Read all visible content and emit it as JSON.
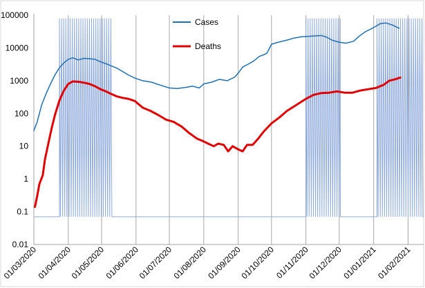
{
  "chart_data": {
    "type": "line",
    "y_scale": "log",
    "ylim": [
      0.01,
      100000
    ],
    "y_ticks": [
      "0.01",
      "0.1",
      "1",
      "10",
      "100",
      "1000",
      "10000",
      "100000"
    ],
    "y_tick_values": [
      0.01,
      0.1,
      1,
      10,
      100,
      1000,
      10000,
      100000
    ],
    "x_ticks": [
      "01/03/2020",
      "01/04/2020",
      "01/05/2020",
      "01/06/2020",
      "01/07/2020",
      "01/08/2020",
      "01/09/2020",
      "01/10/2020",
      "01/11/2020",
      "01/12/2020",
      "01/01/2021",
      "01/02/2021"
    ],
    "x_range": [
      "01/03/2020",
      "15/02/2021"
    ],
    "grid": "vertical",
    "legend_position": "top-center",
    "series": [
      {
        "name": "Cases",
        "color": "#1f6fb4",
        "points": [
          [
            "01/03/2020",
            30
          ],
          [
            "04/03/2020",
            55
          ],
          [
            "08/03/2020",
            180
          ],
          [
            "12/03/2020",
            400
          ],
          [
            "16/03/2020",
            800
          ],
          [
            "20/03/2020",
            1500
          ],
          [
            "24/03/2020",
            2500
          ],
          [
            "28/03/2020",
            3500
          ],
          [
            "01/04/2020",
            4500
          ],
          [
            "05/04/2020",
            5000
          ],
          [
            "10/04/2020",
            4300
          ],
          [
            "15/04/2020",
            4800
          ],
          [
            "20/04/2020",
            4700
          ],
          [
            "25/04/2020",
            4500
          ],
          [
            "30/04/2020",
            3800
          ],
          [
            "05/05/2020",
            3300
          ],
          [
            "10/05/2020",
            2800
          ],
          [
            "15/05/2020",
            2400
          ],
          [
            "20/05/2020",
            1900
          ],
          [
            "25/05/2020",
            1500
          ],
          [
            "31/05/2020",
            1200
          ],
          [
            "07/06/2020",
            1000
          ],
          [
            "15/06/2020",
            900
          ],
          [
            "22/06/2020",
            750
          ],
          [
            "01/07/2020",
            600
          ],
          [
            "08/07/2020",
            580
          ],
          [
            "15/07/2020",
            620
          ],
          [
            "22/07/2020",
            680
          ],
          [
            "28/07/2020",
            600
          ],
          [
            "01/08/2020",
            800
          ],
          [
            "08/08/2020",
            900
          ],
          [
            "15/08/2020",
            1100
          ],
          [
            "22/08/2020",
            1000
          ],
          [
            "29/08/2020",
            1300
          ],
          [
            "01/09/2020",
            1700
          ],
          [
            "05/09/2020",
            2600
          ],
          [
            "10/09/2020",
            3200
          ],
          [
            "15/09/2020",
            4000
          ],
          [
            "20/09/2020",
            5500
          ],
          [
            "24/09/2020",
            6200
          ],
          [
            "27/09/2020",
            7000
          ],
          [
            "01/10/2020",
            13000
          ],
          [
            "07/10/2020",
            15000
          ],
          [
            "14/10/2020",
            17000
          ],
          [
            "21/10/2020",
            20000
          ],
          [
            "28/10/2020",
            22000
          ],
          [
            "07/11/2020",
            23000
          ],
          [
            "15/11/2020",
            24000
          ],
          [
            "20/11/2020",
            21000
          ],
          [
            "25/11/2020",
            17000
          ],
          [
            "01/12/2020",
            15000
          ],
          [
            "07/12/2020",
            14000
          ],
          [
            "14/12/2020",
            16000
          ],
          [
            "19/12/2020",
            23000
          ],
          [
            "25/12/2020",
            32000
          ],
          [
            "01/01/2021",
            42000
          ],
          [
            "07/01/2021",
            55000
          ],
          [
            "12/01/2021",
            58000
          ],
          [
            "18/01/2021",
            50000
          ],
          [
            "24/01/2021",
            40000
          ]
        ]
      },
      {
        "name": "Deaths",
        "color": "#e00000",
        "points": [
          [
            "02/03/2020",
            0.14
          ],
          [
            "04/03/2020",
            0.3
          ],
          [
            "06/03/2020",
            0.7
          ],
          [
            "09/03/2020",
            1.3
          ],
          [
            "11/03/2020",
            4
          ],
          [
            "14/03/2020",
            12
          ],
          [
            "17/03/2020",
            35
          ],
          [
            "20/03/2020",
            90
          ],
          [
            "24/03/2020",
            250
          ],
          [
            "28/03/2020",
            500
          ],
          [
            "01/04/2020",
            800
          ],
          [
            "05/04/2020",
            950
          ],
          [
            "10/04/2020",
            930
          ],
          [
            "15/04/2020",
            870
          ],
          [
            "20/04/2020",
            800
          ],
          [
            "25/04/2020",
            680
          ],
          [
            "30/04/2020",
            550
          ],
          [
            "05/05/2020",
            470
          ],
          [
            "10/05/2020",
            390
          ],
          [
            "15/05/2020",
            330
          ],
          [
            "20/05/2020",
            300
          ],
          [
            "25/05/2020",
            280
          ],
          [
            "31/05/2020",
            240
          ],
          [
            "07/06/2020",
            150
          ],
          [
            "14/06/2020",
            120
          ],
          [
            "21/06/2020",
            90
          ],
          [
            "28/06/2020",
            65
          ],
          [
            "05/07/2020",
            55
          ],
          [
            "12/07/2020",
            40
          ],
          [
            "19/07/2020",
            25
          ],
          [
            "26/07/2020",
            17
          ],
          [
            "01/08/2020",
            14
          ],
          [
            "05/08/2020",
            12
          ],
          [
            "10/08/2020",
            10
          ],
          [
            "14/08/2020",
            12
          ],
          [
            "19/08/2020",
            11
          ],
          [
            "23/08/2020",
            7
          ],
          [
            "27/08/2020",
            10
          ],
          [
            "01/09/2020",
            8
          ],
          [
            "05/09/2020",
            7
          ],
          [
            "09/09/2020",
            11
          ],
          [
            "14/09/2020",
            11
          ],
          [
            "19/09/2020",
            17
          ],
          [
            "24/09/2020",
            28
          ],
          [
            "01/10/2020",
            50
          ],
          [
            "08/10/2020",
            75
          ],
          [
            "15/10/2020",
            120
          ],
          [
            "22/10/2020",
            170
          ],
          [
            "01/11/2020",
            280
          ],
          [
            "08/11/2020",
            370
          ],
          [
            "15/11/2020",
            420
          ],
          [
            "22/11/2020",
            430
          ],
          [
            "29/11/2020",
            470
          ],
          [
            "06/12/2020",
            430
          ],
          [
            "13/12/2020",
            430
          ],
          [
            "20/12/2020",
            500
          ],
          [
            "27/12/2020",
            550
          ],
          [
            "03/01/2021",
            600
          ],
          [
            "10/01/2021",
            750
          ],
          [
            "15/01/2021",
            1000
          ],
          [
            "20/01/2021",
            1100
          ],
          [
            "25/01/2021",
            1250
          ]
        ]
      },
      {
        "name": "",
        "role": "restriction-bands",
        "color": "#8faadc",
        "baseline": 0.07,
        "peak": 80000,
        "bands": [
          [
            "24/03/2020",
            "11/05/2020"
          ],
          [
            "01/11/2020",
            "02/12/2020"
          ],
          [
            "04/01/2021",
            "15/02/2021"
          ]
        ]
      }
    ]
  }
}
